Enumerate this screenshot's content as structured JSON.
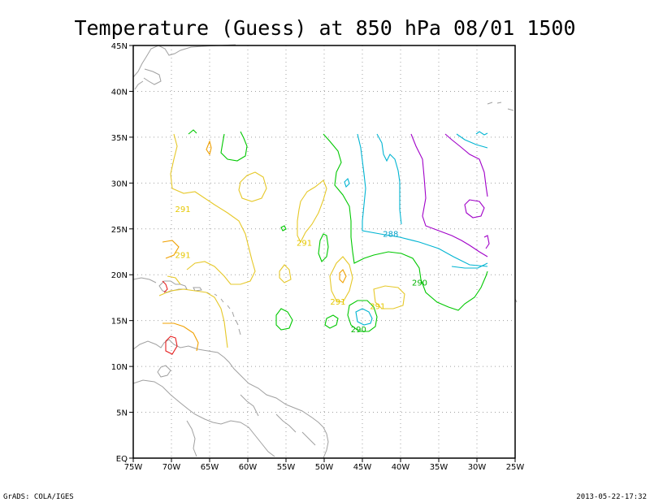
{
  "title": "Temperature (Guess) at 850 hPa 08/01 1500",
  "footer_left": "GrADS: COLA/IGES",
  "footer_right": "2013-05-22-17:32",
  "lat_labels": [
    "45N",
    "40N",
    "35N",
    "30N",
    "25N",
    "20N",
    "15N",
    "10N",
    "5N",
    "EQ"
  ],
  "lon_labels": [
    "75W",
    "70W",
    "65W",
    "60W",
    "55W",
    "50W",
    "45W",
    "40W",
    "35W",
    "30W",
    "25W"
  ],
  "contour_labels": [
    {
      "text": "291",
      "color": "#e6c800",
      "lon": -68.5,
      "lat": 27.2
    },
    {
      "text": "291",
      "color": "#e6c800",
      "lon": -68.5,
      "lat": 22.2
    },
    {
      "text": "291",
      "color": "#e6c800",
      "lon": -52.6,
      "lat": 23.5
    },
    {
      "text": "288",
      "color": "#00a0c8",
      "lon": -41.3,
      "lat": 24.5
    },
    {
      "text": "290",
      "color": "#00b400",
      "lon": -37.5,
      "lat": 19.2
    },
    {
      "text": "291",
      "color": "#e6c800",
      "lon": -48.2,
      "lat": 17.1
    },
    {
      "text": "291",
      "color": "#e6c800",
      "lon": -43.0,
      "lat": 16.6
    },
    {
      "text": "290",
      "color": "#00b400",
      "lon": -45.5,
      "lat": 14.1
    }
  ],
  "colors": {
    "coast": "#a0a0a0",
    "grid": "#a0a0a0",
    "c289": "#00b4d2",
    "c290": "#00c800",
    "c291": "#e6c828",
    "c292": "#f0a000",
    "c293": "#e61e1e",
    "c288": "#a000c8"
  }
}
